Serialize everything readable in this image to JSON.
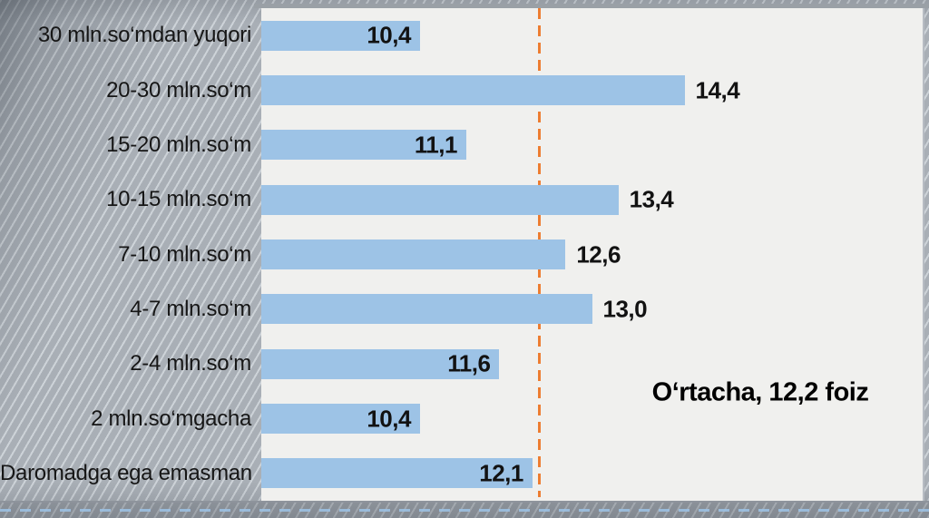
{
  "chart_data": {
    "type": "bar",
    "orientation": "horizontal",
    "title": "",
    "categories": [
      "30 mln.so‘mdan yuqori",
      "20-30 mln.so‘m",
      "15-20 mln.so‘m",
      "10-15 mln.so‘m",
      "7-10 mln.so‘m",
      "4-7 mln.so‘m",
      "2-4 mln.so‘m",
      "2 mln.so‘mgacha",
      "Daromadga ega emasman"
    ],
    "values": [
      10.4,
      14.4,
      11.1,
      13.4,
      12.6,
      13.0,
      11.6,
      10.4,
      12.1
    ],
    "value_labels": [
      "10,4",
      "14,4",
      "11,1",
      "13,4",
      "12,6",
      "13,0",
      "11,6",
      "10,4",
      "12,1"
    ],
    "label_placement": [
      "inside",
      "outside",
      "inside",
      "outside",
      "outside",
      "outside",
      "inside",
      "inside",
      "inside"
    ],
    "xlim": [
      8,
      18
    ],
    "grid": false,
    "legend": false,
    "bar_color": "#9dc3e6",
    "plot_bg": "#f0f0ee",
    "average_line": {
      "value": 12.2,
      "label": "O‘rtacha, 12,2 foiz",
      "color": "#ed7d31",
      "style": "dashed"
    }
  }
}
